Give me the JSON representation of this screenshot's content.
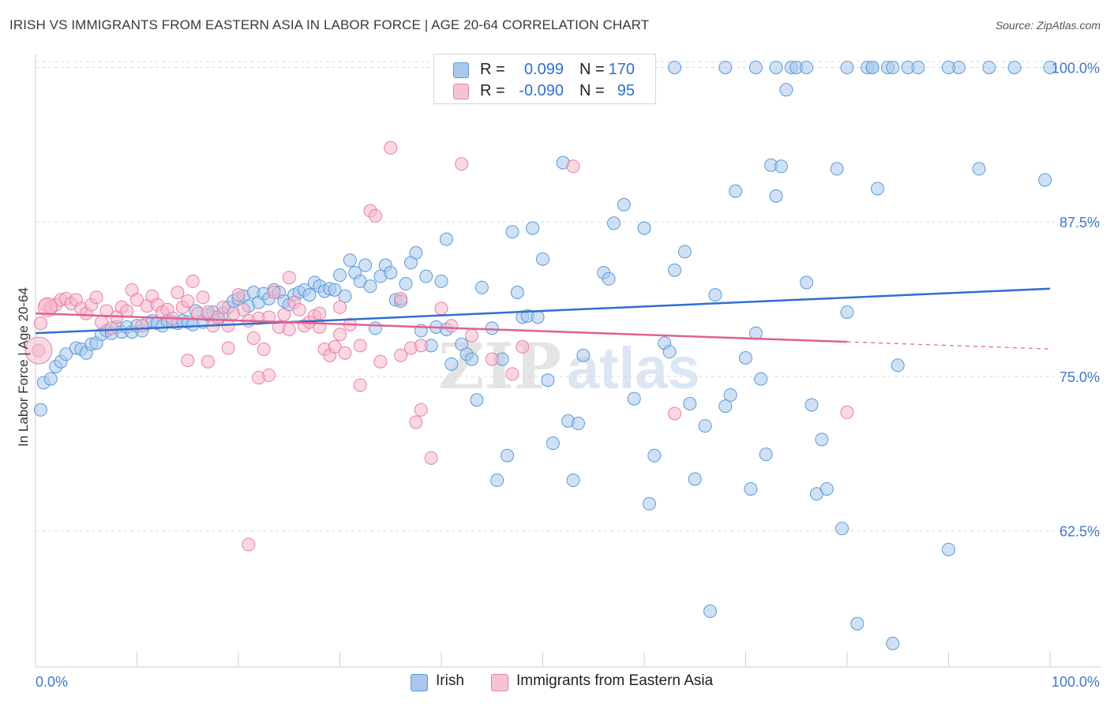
{
  "title": "IRISH VS IMMIGRANTS FROM EASTERN ASIA IN LABOR FORCE | AGE 20-64 CORRELATION CHART",
  "source": "Source: ZipAtlas.com",
  "colors": {
    "irish": "#5b9bd5",
    "irish_fill": "#a9c8ee",
    "irish_line": "#2f6fd0",
    "eastern_asia": "#e87fa3",
    "eastern_asia_fill": "#f5b8cc",
    "eastern_asia_line": "#e06090",
    "tick_label": "#3f78cf",
    "grid": "#d9d9d9"
  },
  "legend_top": {
    "rows": [
      {
        "r_label": "R =",
        "r_value": "0.099",
        "n_label": "N =",
        "n_value": "170"
      },
      {
        "r_label": "R =",
        "r_value": "-0.090",
        "n_label": "N =",
        "n_value": "95"
      }
    ]
  },
  "legend_bottom": [
    "Irish",
    "Immigrants from Eastern Asia"
  ],
  "chart_data": {
    "type": "scatter",
    "title": "IRISH VS IMMIGRANTS FROM EASTERN ASIA IN LABOR FORCE | AGE 20-64 CORRELATION CHART",
    "xlabel": "",
    "ylabel": "In Labor Force | Age 20-64",
    "xlim": [
      0,
      100
    ],
    "ylim": [
      51.5,
      101.5
    ],
    "x_tick_labels": [
      "0.0%",
      "100.0%"
    ],
    "y_ticks": [
      62.5,
      75.0,
      87.5,
      100.0
    ],
    "y_tick_labels": [
      "62.5%",
      "75.0%",
      "87.5%",
      "100.0%"
    ],
    "grid": true,
    "legend_position": "top-center",
    "series": [
      {
        "name": "Irish",
        "R": 0.099,
        "N": 170,
        "trend": {
          "x": [
            0,
            100
          ],
          "y": [
            78.5,
            82.1
          ]
        },
        "points": [
          [
            0.5,
            72.3
          ],
          [
            0.8,
            74.5
          ],
          [
            1.5,
            74.8
          ],
          [
            2,
            75.8
          ],
          [
            2.5,
            76.2
          ],
          [
            3,
            76.8
          ],
          [
            4,
            77.3
          ],
          [
            4.5,
            77.2
          ],
          [
            5,
            76.9
          ],
          [
            5.5,
            77.6
          ],
          [
            6,
            77.7
          ],
          [
            6.5,
            78.4
          ],
          [
            7,
            78.7
          ],
          [
            7.5,
            78.5
          ],
          [
            8,
            79.0
          ],
          [
            8.5,
            78.6
          ],
          [
            9,
            79.0
          ],
          [
            9.5,
            78.6
          ],
          [
            10,
            79.1
          ],
          [
            10.5,
            78.7
          ],
          [
            11,
            79.3
          ],
          [
            11.5,
            79.5
          ],
          [
            12,
            79.3
          ],
          [
            12.5,
            79.1
          ],
          [
            13,
            79.5
          ],
          [
            13.5,
            79.4
          ],
          [
            14,
            79.3
          ],
          [
            14.5,
            79.5
          ],
          [
            15,
            79.4
          ],
          [
            15.5,
            79.2
          ],
          [
            15.8,
            80.3
          ],
          [
            16.5,
            79.4
          ],
          [
            17,
            80.0
          ],
          [
            17.5,
            80.2
          ],
          [
            18,
            79.6
          ],
          [
            18.5,
            80.1
          ],
          [
            19,
            80.6
          ],
          [
            19.5,
            81.1
          ],
          [
            20,
            81.3
          ],
          [
            20.5,
            81.5
          ],
          [
            21,
            80.7
          ],
          [
            21.5,
            81.8
          ],
          [
            22,
            81.0
          ],
          [
            22.5,
            81.7
          ],
          [
            23,
            81.3
          ],
          [
            23.5,
            82.0
          ],
          [
            24,
            81.8
          ],
          [
            24.5,
            81.1
          ],
          [
            25,
            80.8
          ],
          [
            25.5,
            81.6
          ],
          [
            26,
            81.8
          ],
          [
            26.5,
            82.0
          ],
          [
            27,
            81.6
          ],
          [
            27.5,
            82.6
          ],
          [
            28,
            82.3
          ],
          [
            28.5,
            81.9
          ],
          [
            29,
            82.1
          ],
          [
            29.5,
            82.0
          ],
          [
            30,
            83.2
          ],
          [
            30.5,
            81.5
          ],
          [
            31,
            84.4
          ],
          [
            31.5,
            83.4
          ],
          [
            32,
            82.7
          ],
          [
            32.5,
            84.0
          ],
          [
            33,
            82.3
          ],
          [
            33.5,
            78.9
          ],
          [
            34,
            83.1
          ],
          [
            34.5,
            84.0
          ],
          [
            35,
            83.4
          ],
          [
            35.5,
            81.2
          ],
          [
            36,
            81.1
          ],
          [
            36.5,
            82.5
          ],
          [
            37,
            84.2
          ],
          [
            37.5,
            85.0
          ],
          [
            38,
            78.7
          ],
          [
            38.5,
            83.1
          ],
          [
            39,
            77.5
          ],
          [
            39.5,
            79.0
          ],
          [
            40,
            82.7
          ],
          [
            40.5,
            78.8
          ],
          [
            40.5,
            86.1
          ],
          [
            41,
            76.0
          ],
          [
            42,
            77.6
          ],
          [
            42.5,
            76.8
          ],
          [
            43,
            76.4
          ],
          [
            43.5,
            73.1
          ],
          [
            44,
            82.2
          ],
          [
            45,
            78.9
          ],
          [
            45.5,
            66.6
          ],
          [
            46,
            76.4
          ],
          [
            46.5,
            68.6
          ],
          [
            47,
            86.7
          ],
          [
            47.5,
            81.8
          ],
          [
            48,
            79.8
          ],
          [
            48.5,
            79.9
          ],
          [
            49,
            87.0
          ],
          [
            49.5,
            79.8
          ],
          [
            50,
            84.5
          ],
          [
            50.5,
            74.7
          ],
          [
            51,
            69.6
          ],
          [
            52,
            92.3
          ],
          [
            52.5,
            71.4
          ],
          [
            53,
            66.6
          ],
          [
            53.5,
            71.2
          ],
          [
            54,
            76.7
          ],
          [
            56,
            83.4
          ],
          [
            56.5,
            82.9
          ],
          [
            57,
            87.4
          ],
          [
            58,
            88.9
          ],
          [
            59,
            73.2
          ],
          [
            60,
            87.0
          ],
          [
            60.5,
            64.7
          ],
          [
            61,
            68.6
          ],
          [
            62,
            77.7
          ],
          [
            62.5,
            77.0
          ],
          [
            63,
            83.6
          ],
          [
            64,
            85.1
          ],
          [
            64.5,
            72.8
          ],
          [
            65,
            66.7
          ],
          [
            66,
            71.0
          ],
          [
            66.5,
            56.0
          ],
          [
            67,
            81.6
          ],
          [
            68,
            72.6
          ],
          [
            68.5,
            73.5
          ],
          [
            69,
            90.0
          ],
          [
            70,
            76.5
          ],
          [
            70.5,
            65.9
          ],
          [
            71,
            78.5
          ],
          [
            71.5,
            74.8
          ],
          [
            72,
            68.7
          ],
          [
            72.5,
            92.1
          ],
          [
            73,
            89.6
          ],
          [
            73.5,
            92.0
          ],
          [
            74,
            98.2
          ],
          [
            74.5,
            100.0
          ],
          [
            75,
            100.0
          ],
          [
            76,
            82.6
          ],
          [
            76.5,
            72.7
          ],
          [
            77,
            65.5
          ],
          [
            77.5,
            69.9
          ],
          [
            78,
            65.9
          ],
          [
            79,
            91.8
          ],
          [
            79.5,
            62.7
          ],
          [
            80,
            80.2
          ],
          [
            81,
            55.0
          ],
          [
            82,
            100.0
          ],
          [
            82.5,
            100.0
          ],
          [
            83,
            90.2
          ],
          [
            84,
            100.0
          ],
          [
            84.5,
            53.4
          ],
          [
            85,
            75.9
          ],
          [
            86,
            100.0
          ],
          [
            87,
            100.0
          ],
          [
            90,
            61.0
          ],
          [
            91,
            100.0
          ],
          [
            93,
            91.8
          ],
          [
            94,
            100.0
          ],
          [
            99.5,
            90.9
          ],
          [
            55,
            100.0
          ],
          [
            63,
            100.0
          ],
          [
            68,
            100.0
          ],
          [
            71,
            100.0
          ],
          [
            73,
            100.0
          ],
          [
            76,
            100.0
          ],
          [
            80,
            100.0
          ],
          [
            82.5,
            100.0
          ],
          [
            84.5,
            100.0
          ],
          [
            90,
            100.0
          ],
          [
            96.5,
            100.0
          ],
          [
            100,
            100.0
          ]
        ]
      },
      {
        "name": "Immigrants from Eastern Asia",
        "R": -0.09,
        "N": 95,
        "trend": {
          "x": [
            0,
            80
          ],
          "y": [
            80.1,
            77.8
          ]
        },
        "points": [
          [
            0.3,
            77.1
          ],
          [
            0.5,
            79.3
          ],
          [
            1,
            80.8
          ],
          [
            1.5,
            80.6
          ],
          [
            2,
            80.8
          ],
          [
            2.5,
            81.2
          ],
          [
            3,
            81.3
          ],
          [
            3.5,
            80.9
          ],
          [
            4,
            81.2
          ],
          [
            4.5,
            80.5
          ],
          [
            5,
            80.1
          ],
          [
            5.5,
            80.8
          ],
          [
            6,
            81.4
          ],
          [
            6.5,
            79.4
          ],
          [
            7,
            80.3
          ],
          [
            7.5,
            78.9
          ],
          [
            8,
            79.8
          ],
          [
            8.5,
            80.6
          ],
          [
            9,
            80.3
          ],
          [
            9.5,
            82.0
          ],
          [
            10,
            81.2
          ],
          [
            10.5,
            79.1
          ],
          [
            11,
            80.7
          ],
          [
            11.5,
            81.5
          ],
          [
            12,
            80.8
          ],
          [
            12.5,
            80.2
          ],
          [
            13,
            80.4
          ],
          [
            13.5,
            79.7
          ],
          [
            14,
            81.8
          ],
          [
            14.5,
            80.6
          ],
          [
            15,
            81.1
          ],
          [
            15.5,
            82.7
          ],
          [
            16,
            80.1
          ],
          [
            16.5,
            81.4
          ],
          [
            17,
            80.2
          ],
          [
            17.5,
            79.1
          ],
          [
            18,
            79.8
          ],
          [
            18.5,
            80.6
          ],
          [
            19,
            79.1
          ],
          [
            19.5,
            80.1
          ],
          [
            20,
            81.6
          ],
          [
            20.5,
            80.4
          ],
          [
            21,
            79.5
          ],
          [
            21.5,
            78.1
          ],
          [
            22,
            79.7
          ],
          [
            22.5,
            77.2
          ],
          [
            23,
            79.8
          ],
          [
            23.5,
            81.8
          ],
          [
            24,
            79.0
          ],
          [
            24.5,
            80.0
          ],
          [
            25,
            78.8
          ],
          [
            25.5,
            81.0
          ],
          [
            26,
            80.4
          ],
          [
            26.5,
            79.1
          ],
          [
            27,
            79.4
          ],
          [
            27.5,
            79.9
          ],
          [
            28,
            80.1
          ],
          [
            28.5,
            77.2
          ],
          [
            29,
            76.7
          ],
          [
            29.5,
            77.4
          ],
          [
            30,
            78.4
          ],
          [
            30.5,
            76.9
          ],
          [
            31,
            79.2
          ],
          [
            32,
            77.5
          ],
          [
            33,
            88.4
          ],
          [
            33.5,
            88.0
          ],
          [
            35,
            93.5
          ],
          [
            36,
            81.3
          ],
          [
            37,
            77.3
          ],
          [
            37.5,
            71.3
          ],
          [
            38,
            72.3
          ],
          [
            39,
            68.4
          ],
          [
            40,
            80.5
          ],
          [
            42,
            92.2
          ],
          [
            47,
            75.2
          ],
          [
            48,
            77.4
          ],
          [
            53,
            92.0
          ],
          [
            63,
            72.0
          ],
          [
            15,
            76.3
          ],
          [
            17,
            76.2
          ],
          [
            19,
            77.3
          ],
          [
            21,
            61.4
          ],
          [
            22,
            74.9
          ],
          [
            23,
            75.1
          ],
          [
            25,
            83.0
          ],
          [
            28,
            79.0
          ],
          [
            30,
            80.6
          ],
          [
            32,
            74.3
          ],
          [
            34,
            76.2
          ],
          [
            36,
            76.7
          ],
          [
            38,
            77.5
          ],
          [
            41,
            79.1
          ],
          [
            43,
            78.3
          ],
          [
            45,
            76.4
          ],
          [
            80,
            72.1
          ]
        ]
      }
    ]
  }
}
